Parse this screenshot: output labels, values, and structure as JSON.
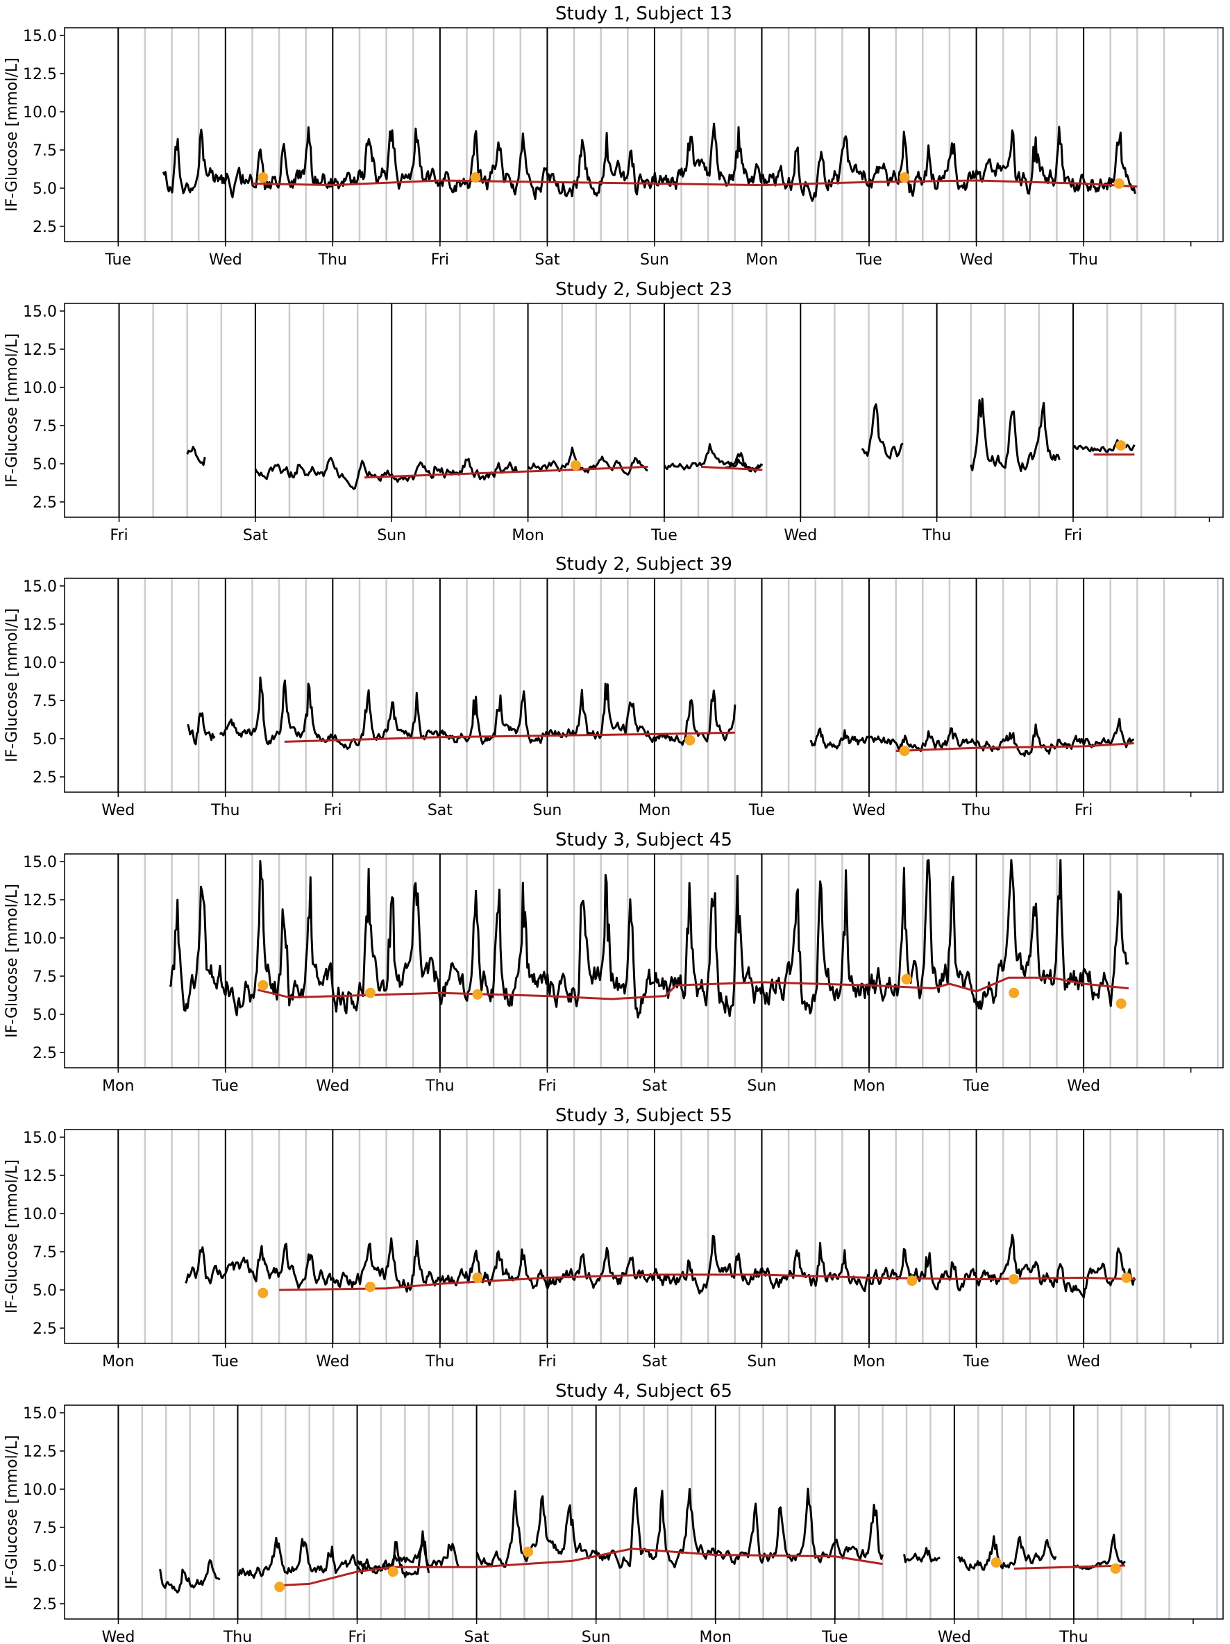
{
  "chart_data": [
    {
      "type": "line",
      "title": "Study 1, Subject 13",
      "xlabel": "",
      "ylabel": "IF-Glucose [mmol/L]",
      "ylim": [
        1.5,
        15.5
      ],
      "yticks": [
        "2.5",
        "5.0",
        "7.5",
        "10.0",
        "12.5",
        "15.0"
      ],
      "xlim_days": [
        -0.5,
        10.3
      ],
      "x_tick_labels": [
        "Tue",
        "Wed",
        "Thu",
        "Fri",
        "Sat",
        "Sun",
        "Mon",
        "Tue",
        "Wed",
        "Thu"
      ],
      "day_lines": true,
      "grey_gridlines_per_day": 3,
      "series": [
        {
          "kind": "glucose",
          "color": "#000000",
          "segments": [
            {
              "start": 0.42,
              "end": 9.48,
              "base": 5.6,
              "amp": 1.5,
              "spike": 3.4,
              "seed": 11
            }
          ]
        },
        {
          "kind": "baseline",
          "color": "#b22222",
          "points": [
            [
              1.25,
              5.3
            ],
            [
              2.0,
              5.2
            ],
            [
              3.0,
              5.5
            ],
            [
              4.0,
              5.4
            ],
            [
              5.0,
              5.3
            ],
            [
              6.0,
              5.2
            ],
            [
              7.0,
              5.4
            ],
            [
              8.0,
              5.5
            ],
            [
              9.0,
              5.3
            ],
            [
              9.5,
              5.1
            ]
          ]
        },
        {
          "kind": "marker",
          "color": "#f5a623",
          "points": [
            [
              1.35,
              5.7
            ],
            [
              3.33,
              5.7
            ],
            [
              7.33,
              5.7
            ],
            [
              9.33,
              5.3
            ]
          ]
        }
      ]
    },
    {
      "type": "line",
      "title": "Study 2, Subject 23",
      "xlabel": "",
      "ylabel": "IF-Glucose [mmol/L]",
      "ylim": [
        1.5,
        15.5
      ],
      "yticks": [
        "2.5",
        "5.0",
        "7.5",
        "10.0",
        "12.5",
        "15.0"
      ],
      "xlim_days": [
        -0.4,
        8.1
      ],
      "x_tick_labels": [
        "Fri",
        "Sat",
        "Sun",
        "Mon",
        "Tue",
        "Wed",
        "Thu",
        "Fri"
      ],
      "day_lines": true,
      "grey_gridlines_per_day": 3,
      "series": [
        {
          "kind": "glucose",
          "color": "#000000",
          "segments": [
            {
              "start": 0.5,
              "end": 0.63,
              "base": 5.6,
              "amp": 1.2,
              "spike": 1.0,
              "seed": 21
            },
            {
              "start": 1.0,
              "end": 2.92,
              "base": 4.4,
              "amp": 0.9,
              "spike": 1.0,
              "seed": 22
            },
            {
              "start": 3.0,
              "end": 3.88,
              "base": 4.9,
              "amp": 0.7,
              "spike": 0.8,
              "seed": 23
            },
            {
              "start": 4.0,
              "end": 4.72,
              "base": 4.8,
              "amp": 0.5,
              "spike": 1.2,
              "seed": 24
            },
            {
              "start": 4.45,
              "end": 4.72,
              "base": 4.8,
              "amp": 0.3,
              "spike": 0.5,
              "seed": 25
            },
            {
              "start": 5.45,
              "end": 5.75,
              "base": 5.8,
              "amp": 1.2,
              "spike": 2.5,
              "seed": 26
            },
            {
              "start": 6.25,
              "end": 6.9,
              "base": 5.2,
              "amp": 1.2,
              "spike": 4.5,
              "seed": 27
            },
            {
              "start": 7.0,
              "end": 7.45,
              "base": 6.0,
              "amp": 0.6,
              "spike": 0.8,
              "seed": 28
            }
          ]
        },
        {
          "kind": "baseline",
          "color": "#b22222",
          "points": [
            [
              1.8,
              4.1
            ],
            [
              3.0,
              4.5
            ],
            [
              3.88,
              4.8
            ]
          ],
          "extra": [
            [
              [
                4.27,
                4.8
              ],
              [
                4.72,
                4.6
              ]
            ],
            [
              [
                7.15,
                5.6
              ],
              [
                7.45,
                5.6
              ]
            ]
          ]
        },
        {
          "kind": "marker",
          "color": "#f5a623",
          "points": [
            [
              3.35,
              4.9
            ],
            [
              7.35,
              6.2
            ]
          ]
        }
      ]
    },
    {
      "type": "line",
      "title": "Study 2, Subject 39",
      "xlabel": "",
      "ylabel": "IF-Glucose [mmol/L]",
      "ylim": [
        1.5,
        15.5
      ],
      "yticks": [
        "2.5",
        "5.0",
        "7.5",
        "10.0",
        "12.5",
        "15.0"
      ],
      "xlim_days": [
        -0.5,
        10.3
      ],
      "x_tick_labels": [
        "Wed",
        "Thu",
        "Fri",
        "Sat",
        "Sun",
        "Mon",
        "Tue",
        "Wed",
        "Thu",
        "Fri"
      ],
      "day_lines": true,
      "grey_gridlines_per_day": 3,
      "series": [
        {
          "kind": "glucose",
          "color": "#000000",
          "segments": [
            {
              "start": 0.65,
              "end": 0.9,
              "base": 5.5,
              "amp": 1.3,
              "spike": 2.5,
              "seed": 31
            },
            {
              "start": 0.95,
              "end": 5.75,
              "base": 5.3,
              "amp": 0.8,
              "spike": 3.5,
              "seed": 32
            },
            {
              "start": 6.45,
              "end": 9.47,
              "base": 4.6,
              "amp": 0.8,
              "spike": 1.2,
              "seed": 33
            }
          ]
        },
        {
          "kind": "baseline",
          "color": "#b22222",
          "points": [
            [
              1.55,
              4.8
            ],
            [
              3.0,
              5.1
            ],
            [
              5.0,
              5.3
            ],
            [
              5.75,
              5.4
            ]
          ],
          "extra": [
            [
              [
                7.25,
                4.2
              ],
              [
                8.0,
                4.4
              ],
              [
                9.0,
                4.5
              ],
              [
                9.47,
                4.7
              ]
            ]
          ]
        },
        {
          "kind": "marker",
          "color": "#f5a623",
          "points": [
            [
              5.33,
              4.9
            ],
            [
              7.33,
              4.2
            ]
          ]
        }
      ]
    },
    {
      "type": "line",
      "title": "Study 3, Subject 45",
      "xlabel": "",
      "ylabel": "IF-Glucose [mmol/L]",
      "ylim": [
        1.5,
        15.5
      ],
      "yticks": [
        "2.5",
        "5.0",
        "7.5",
        "10.0",
        "12.5",
        "15.0"
      ],
      "xlim_days": [
        -0.5,
        10.3
      ],
      "x_tick_labels": [
        "Mon",
        "Tue",
        "Wed",
        "Thu",
        "Fri",
        "Sat",
        "Sun",
        "Mon",
        "Tue",
        "Wed"
      ],
      "day_lines": true,
      "grey_gridlines_per_day": 3,
      "series": [
        {
          "kind": "glucose",
          "color": "#000000",
          "segments": [
            {
              "start": 0.48,
              "end": 9.42,
              "base": 6.8,
              "amp": 2.2,
              "spike": 8.0,
              "seed": 41
            }
          ]
        },
        {
          "kind": "baseline",
          "color": "#b22222",
          "points": [
            [
              1.3,
              6.6
            ],
            [
              1.6,
              6.1
            ],
            [
              3.0,
              6.4
            ],
            [
              4.0,
              6.2
            ],
            [
              4.6,
              6.0
            ],
            [
              5.1,
              6.2
            ],
            [
              5.2,
              6.9
            ],
            [
              6.0,
              7.1
            ],
            [
              6.5,
              7.0
            ],
            [
              7.0,
              6.9
            ],
            [
              7.6,
              6.7
            ],
            [
              7.75,
              7.0
            ],
            [
              8.0,
              6.5
            ],
            [
              8.3,
              7.4
            ],
            [
              8.7,
              7.4
            ],
            [
              9.0,
              7.0
            ],
            [
              9.42,
              6.7
            ]
          ]
        },
        {
          "kind": "marker",
          "color": "#f5a623",
          "points": [
            [
              1.35,
              6.9
            ],
            [
              2.35,
              6.4
            ],
            [
              3.35,
              6.3
            ],
            [
              7.35,
              7.3
            ],
            [
              8.35,
              6.4
            ],
            [
              9.35,
              5.7
            ]
          ]
        }
      ]
    },
    {
      "type": "line",
      "title": "Study 3, Subject 55",
      "xlabel": "",
      "ylabel": "IF-Glucose [mmol/L]",
      "ylim": [
        1.5,
        15.5
      ],
      "yticks": [
        "2.5",
        "5.0",
        "7.5",
        "10.0",
        "12.5",
        "15.0"
      ],
      "xlim_days": [
        -0.5,
        10.3
      ],
      "x_tick_labels": [
        "Mon",
        "Tue",
        "Wed",
        "Thu",
        "Fri",
        "Sat",
        "Sun",
        "Mon",
        "Tue",
        "Wed"
      ],
      "day_lines": true,
      "grey_gridlines_per_day": 3,
      "series": [
        {
          "kind": "glucose",
          "color": "#000000",
          "segments": [
            {
              "start": 0.63,
              "end": 9.48,
              "base": 5.8,
              "amp": 1.1,
              "spike": 2.2,
              "seed": 51
            }
          ]
        },
        {
          "kind": "baseline",
          "color": "#b22222",
          "points": [
            [
              1.5,
              5.0
            ],
            [
              2.5,
              5.1
            ],
            [
              3.0,
              5.4
            ],
            [
              4.0,
              5.8
            ],
            [
              5.0,
              6.0
            ],
            [
              6.0,
              6.0
            ],
            [
              7.0,
              5.8
            ],
            [
              8.0,
              5.7
            ],
            [
              9.0,
              5.8
            ],
            [
              9.48,
              5.7
            ]
          ]
        },
        {
          "kind": "marker",
          "color": "#f5a623",
          "points": [
            [
              1.35,
              4.8
            ],
            [
              2.35,
              5.2
            ],
            [
              3.35,
              5.8
            ],
            [
              7.4,
              5.6
            ],
            [
              8.35,
              5.7
            ],
            [
              9.4,
              5.8
            ]
          ]
        }
      ]
    },
    {
      "type": "line",
      "title": "Study 4, Subject 65",
      "xlabel": "",
      "ylabel": "IF-Glucose [mmol/L]",
      "ylim": [
        1.5,
        15.5
      ],
      "yticks": [
        "2.5",
        "5.0",
        "7.5",
        "10.0",
        "12.5",
        "15.0"
      ],
      "xlim_days": [
        -0.45,
        9.25
      ],
      "x_tick_labels": [
        "Wed",
        "Thu",
        "Fri",
        "Sat",
        "Sun",
        "Mon",
        "Tue",
        "Wed",
        "Thu"
      ],
      "day_lines": true,
      "grey_gridlines_per_day": 4,
      "series": [
        {
          "kind": "glucose",
          "color": "#000000",
          "segments": [
            {
              "start": 0.35,
              "end": 0.85,
              "base": 3.8,
              "amp": 0.8,
              "spike": 1.5,
              "seed": 61
            },
            {
              "start": 1.0,
              "end": 2.6,
              "base": 4.8,
              "amp": 0.9,
              "spike": 2.2,
              "seed": 62
            },
            {
              "start": 2.0,
              "end": 2.85,
              "base": 5.2,
              "amp": 0.8,
              "spike": 1.2,
              "seed": 63
            },
            {
              "start": 3.0,
              "end": 6.4,
              "base": 5.6,
              "amp": 1.0,
              "spike": 4.5,
              "seed": 64
            },
            {
              "start": 6.58,
              "end": 6.88,
              "base": 5.4,
              "amp": 0.7,
              "spike": 1.2,
              "seed": 65
            },
            {
              "start": 7.03,
              "end": 7.85,
              "base": 5.3,
              "amp": 0.8,
              "spike": 1.5,
              "seed": 66
            },
            {
              "start": 8.0,
              "end": 8.43,
              "base": 5.0,
              "amp": 0.4,
              "spike": 2.0,
              "seed": 67
            }
          ]
        },
        {
          "kind": "baseline",
          "color": "#b22222",
          "points": [
            [
              1.35,
              3.7
            ],
            [
              1.6,
              3.8
            ],
            [
              2.0,
              4.6
            ],
            [
              2.3,
              4.9
            ],
            [
              3.0,
              4.9
            ],
            [
              3.8,
              5.3
            ],
            [
              4.3,
              6.1
            ],
            [
              5.0,
              5.7
            ],
            [
              6.0,
              5.6
            ],
            [
              6.4,
              5.1
            ]
          ],
          "extra": [
            [
              [
                7.5,
                4.8
              ],
              [
                8.43,
                5.0
              ]
            ]
          ]
        },
        {
          "kind": "marker",
          "color": "#f5a623",
          "points": [
            [
              1.35,
              3.6
            ],
            [
              2.3,
              4.6
            ],
            [
              3.43,
              5.9
            ],
            [
              7.35,
              5.2
            ],
            [
              8.35,
              4.8
            ]
          ]
        }
      ]
    }
  ]
}
